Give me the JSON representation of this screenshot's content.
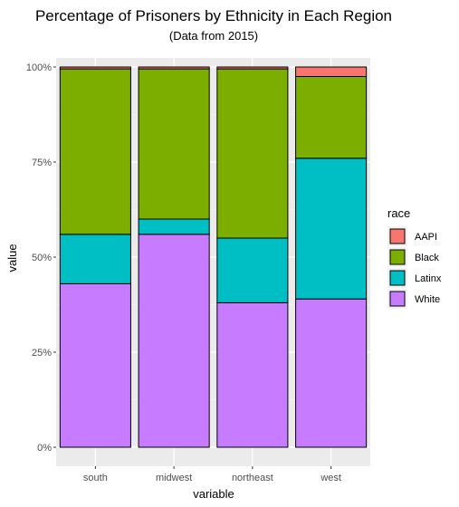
{
  "chart_data": {
    "type": "bar",
    "stacked": true,
    "title": "Percentage of Prisoners by Ethnicity in Each Region",
    "subtitle": "(Data from 2015)",
    "xlabel": "variable",
    "ylabel": "value",
    "ylim": [
      0,
      1
    ],
    "y_ticks": [
      0,
      0.25,
      0.5,
      0.75,
      1.0
    ],
    "y_tick_labels": [
      "0%",
      "25%",
      "50%",
      "75%",
      "100%"
    ],
    "categories": [
      "south",
      "midwest",
      "northeast",
      "west"
    ],
    "legend": {
      "title": "race",
      "position": "right"
    },
    "grid": true,
    "series": [
      {
        "name": "White",
        "color": "#C77CFF",
        "values": [
          0.43,
          0.56,
          0.38,
          0.39
        ]
      },
      {
        "name": "Latinx",
        "color": "#00BFC4",
        "values": [
          0.13,
          0.04,
          0.17,
          0.37
        ]
      },
      {
        "name": "Black",
        "color": "#7CAE00",
        "values": [
          0.435,
          0.395,
          0.445,
          0.215
        ]
      },
      {
        "name": "AAPI",
        "color": "#F8766D",
        "values": [
          0.005,
          0.005,
          0.005,
          0.025
        ]
      }
    ],
    "legend_order": [
      "AAPI",
      "Black",
      "Latinx",
      "White"
    ]
  }
}
